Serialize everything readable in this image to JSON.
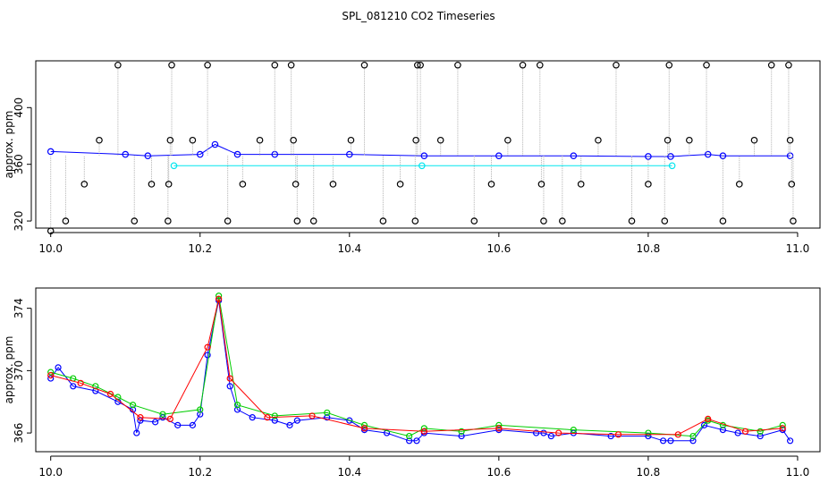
{
  "title": "SPL_081210  CO2 Timeseries",
  "chart_data": [
    {
      "type": "scatter",
      "ylabel": "approx. ppm",
      "xlim": [
        9.98,
        11.03
      ],
      "ylim": [
        315,
        433
      ],
      "xticks": [
        "10.0",
        "10.2",
        "10.4",
        "10.6",
        "10.8",
        "11.0"
      ],
      "yticks": [
        "320",
        "360",
        "400"
      ],
      "colors": {
        "outlier": "#000000",
        "main": "#0000ff",
        "alt": "#00e5ee",
        "line": "#b3b3b3",
        "red": "#ff0000",
        "green": "#00cd00"
      },
      "series": [
        {
          "name": "",
          "color": "#0000ff",
          "x": [
            10.0,
            10.1,
            10.13,
            10.2,
            10.22,
            10.25,
            10.3,
            10.4,
            10.5,
            10.6,
            10.7,
            10.8,
            10.83,
            10.88,
            10.9,
            10.99
          ],
          "y": [
            369,
            367,
            366,
            367,
            374,
            367,
            367,
            367,
            366,
            366,
            366,
            365.5,
            365.5,
            367,
            366,
            366
          ]
        },
        {
          "name": "",
          "color": "#000000",
          "x": [
            10.0,
            10.02,
            10.045,
            10.065,
            10.09,
            10.112,
            10.135,
            10.157,
            10.158,
            10.16,
            10.162,
            10.19,
            10.21,
            10.237,
            10.257,
            10.28,
            10.3,
            10.322,
            10.325,
            10.328,
            10.33,
            10.352,
            10.378,
            10.402,
            10.42,
            10.445,
            10.468,
            10.488,
            10.489,
            10.491,
            10.495,
            10.522,
            10.545,
            10.567,
            10.59,
            10.612,
            10.632,
            10.655,
            10.657,
            10.66,
            10.685,
            10.71,
            10.733,
            10.757,
            10.778,
            10.8,
            10.822,
            10.826,
            10.828,
            10.855,
            10.878,
            10.9,
            10.922,
            10.942,
            10.965,
            10.988,
            10.99,
            10.992,
            10.994
          ],
          "y": [
            313,
            320,
            346,
            377,
            430,
            320,
            346,
            320,
            346,
            377,
            430,
            377,
            430,
            320,
            346,
            377,
            430,
            430,
            377,
            346,
            320,
            320,
            346,
            377,
            430,
            320,
            346,
            320,
            377,
            430,
            430,
            377,
            430,
            320,
            346,
            377,
            430,
            430,
            346,
            320,
            320,
            346,
            377,
            430,
            320,
            346,
            320,
            377,
            430,
            377,
            430,
            320,
            346,
            377,
            430,
            430,
            377,
            346,
            320
          ]
        },
        {
          "name": "",
          "color": "#00e5ee",
          "x": [
            10.165,
            10.497,
            10.832
          ],
          "y": [
            359,
            359,
            359
          ]
        }
      ]
    },
    {
      "type": "scatter",
      "ylabel": "approx. ppm",
      "xlim": [
        9.98,
        11.03
      ],
      "ylim": [
        364.8,
        375.3
      ],
      "xticks": [
        "10.0",
        "10.2",
        "10.4",
        "10.6",
        "10.8",
        "11.0"
      ],
      "yticks": [
        "366",
        "370",
        "374"
      ],
      "series": [
        {
          "name": "",
          "color": "#0000ff",
          "x": [
            10.0,
            10.01,
            10.03,
            10.06,
            10.09,
            10.11,
            10.115,
            10.12,
            10.14,
            10.15,
            10.17,
            10.19,
            10.2,
            10.21,
            10.225,
            10.24,
            10.25,
            10.27,
            10.3,
            10.32,
            10.33,
            10.37,
            10.4,
            10.42,
            10.45,
            10.48,
            10.49,
            10.5,
            10.55,
            10.6,
            10.65,
            10.66,
            10.67,
            10.7,
            10.75,
            10.8,
            10.82,
            10.83,
            10.86,
            10.875,
            10.9,
            10.92,
            10.95,
            10.98,
            10.99
          ],
          "y": [
            369.5,
            370.2,
            369.0,
            368.7,
            368.0,
            367.5,
            366.0,
            366.8,
            366.7,
            367.0,
            366.5,
            366.5,
            367.2,
            371.0,
            374.5,
            369.0,
            367.5,
            367.0,
            366.8,
            366.5,
            366.8,
            367.0,
            366.8,
            366.2,
            366.0,
            365.5,
            365.5,
            366.0,
            365.8,
            366.2,
            366.0,
            366.0,
            365.8,
            366.0,
            365.8,
            365.8,
            365.5,
            365.5,
            365.5,
            366.5,
            366.2,
            366.0,
            365.8,
            366.2,
            365.5
          ]
        },
        {
          "name": "",
          "color": "#00cd00",
          "x": [
            10.0,
            10.03,
            10.06,
            10.09,
            10.11,
            10.15,
            10.2,
            10.225,
            10.25,
            10.3,
            10.37,
            10.42,
            10.48,
            10.5,
            10.55,
            10.6,
            10.7,
            10.8,
            10.86,
            10.88,
            10.9,
            10.95,
            10.98
          ],
          "y": [
            369.9,
            369.5,
            369.0,
            368.3,
            367.8,
            367.2,
            367.5,
            374.8,
            367.8,
            367.1,
            367.3,
            366.5,
            365.8,
            366.3,
            366.1,
            366.5,
            366.2,
            366.0,
            365.8,
            366.8,
            366.5,
            366.1,
            366.5
          ]
        },
        {
          "name": "",
          "color": "#ff0000",
          "x": [
            10.0,
            10.04,
            10.08,
            10.12,
            10.16,
            10.21,
            10.225,
            10.24,
            10.29,
            10.35,
            10.42,
            10.5,
            10.6,
            10.68,
            10.76,
            10.84,
            10.88,
            10.93,
            10.98
          ],
          "y": [
            369.7,
            369.2,
            368.5,
            367.0,
            366.9,
            371.5,
            374.6,
            369.5,
            367.0,
            367.1,
            366.3,
            366.1,
            366.3,
            366.0,
            365.9,
            365.9,
            366.9,
            366.1,
            366.3
          ]
        }
      ]
    }
  ]
}
